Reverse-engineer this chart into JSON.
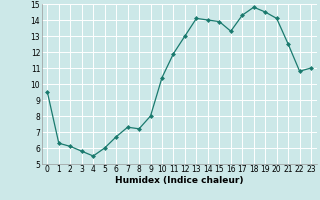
{
  "x": [
    0,
    1,
    2,
    3,
    4,
    5,
    6,
    7,
    8,
    9,
    10,
    11,
    12,
    13,
    14,
    15,
    16,
    17,
    18,
    19,
    20,
    21,
    22,
    23
  ],
  "y": [
    9.5,
    6.3,
    6.1,
    5.8,
    5.5,
    6.0,
    6.7,
    7.3,
    7.2,
    8.0,
    10.4,
    11.9,
    13.0,
    14.1,
    14.0,
    13.9,
    13.3,
    14.3,
    14.8,
    14.5,
    14.1,
    12.5,
    10.8,
    11.0
  ],
  "xlabel": "Humidex (Indice chaleur)",
  "ylim": [
    5,
    15
  ],
  "xlim": [
    -0.5,
    23.5
  ],
  "yticks": [
    5,
    6,
    7,
    8,
    9,
    10,
    11,
    12,
    13,
    14,
    15
  ],
  "xticks": [
    0,
    1,
    2,
    3,
    4,
    5,
    6,
    7,
    8,
    9,
    10,
    11,
    12,
    13,
    14,
    15,
    16,
    17,
    18,
    19,
    20,
    21,
    22,
    23
  ],
  "line_color": "#1a7a6e",
  "marker_color": "#1a7a6e",
  "bg_color": "#cce8e8",
  "grid_color": "#ffffff",
  "label_fontsize": 6.5,
  "tick_fontsize": 5.5
}
